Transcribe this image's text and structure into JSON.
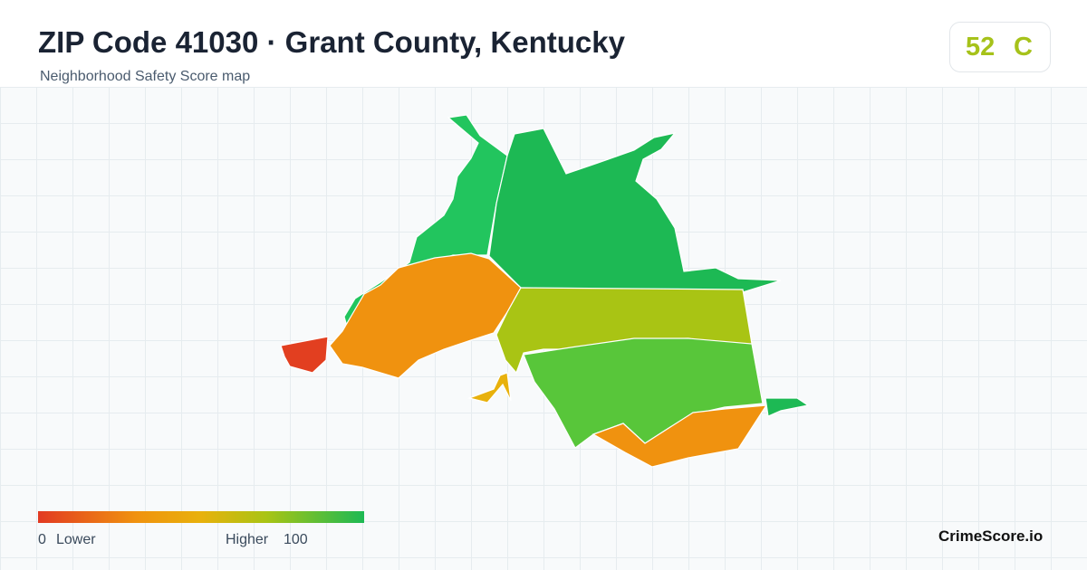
{
  "header": {
    "title": "ZIP Code 41030 · Grant County, Kentucky",
    "subtitle": "Neighborhood Safety Score map"
  },
  "badge": {
    "score": "52",
    "grade": "C"
  },
  "legend": {
    "min": "0",
    "min_label": "Lower",
    "max_label": "Higher",
    "max": "100"
  },
  "brand": "CrimeScore.io"
}
